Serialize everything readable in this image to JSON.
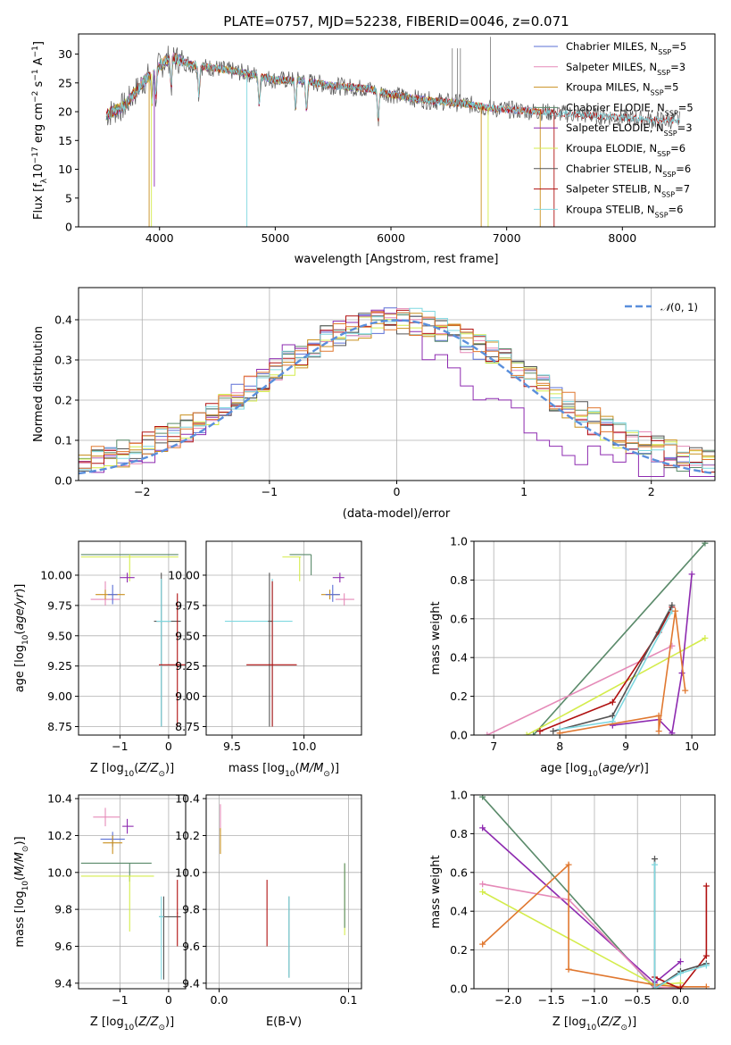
{
  "figure_title": "PLATE=0757, MJD=52238, FIBERID=0046, z=0.071",
  "colors": {
    "Chabrier MILES": "#5b6fd6",
    "Salpeter MILES": "#e58ab8",
    "Kroupa MILES": "#c9901f",
    "Chabrier ELODIE": "#5a8a6a",
    "Salpeter ELODIE": "#8e2bb0",
    "Kroupa ELODIE": "#d4ec4c",
    "Chabrier STELIB": "#555555",
    "Salpeter STELIB": "#b01010",
    "Kroupa STELIB": "#7fd8e0",
    "extra": "#e07830"
  },
  "chart_data": [
    {
      "type": "line",
      "id": "spectrum",
      "title": "PLATE=0757, MJD=52238, FIBERID=0046, z=0.071",
      "xlabel": "wavelength [Angstrom, rest frame]",
      "ylabel": "Flux [f_λ 10^-17 erg cm^-2 s^-1 A^-1]",
      "xlim": [
        3300,
        8800
      ],
      "ylim": [
        0,
        33.5
      ],
      "xticks": [
        4000,
        5000,
        6000,
        7000,
        8000
      ],
      "yticks": [
        0,
        5,
        10,
        15,
        20,
        25,
        30
      ],
      "grid": false,
      "legend_position": "top-right",
      "legend": [
        "Chabrier MILES, N_SSP=5",
        "Salpeter MILES, N_SSP=3",
        "Kroupa MILES, N_SSP=5",
        "Chabrier ELODIE, N_SSP=5",
        "Salpeter ELODIE, N_SSP=3",
        "Kroupa ELODIE, N_SSP=6",
        "Chabrier STELIB, N_SSP=6",
        "Salpeter STELIB, N_SSP=7",
        "Kroupa STELIB, N_SSP=6"
      ],
      "continuum": [
        [
          3540,
          19.5
        ],
        [
          3700,
          21
        ],
        [
          3850,
          25
        ],
        [
          4000,
          28
        ],
        [
          4100,
          29.5
        ],
        [
          4300,
          28
        ],
        [
          4500,
          27.5
        ],
        [
          4800,
          26.5
        ],
        [
          5000,
          25.5
        ],
        [
          5200,
          25.5
        ],
        [
          5500,
          24.5
        ],
        [
          5800,
          24
        ],
        [
          6000,
          23
        ],
        [
          6300,
          22
        ],
        [
          6600,
          21.5
        ],
        [
          6900,
          20.5
        ],
        [
          7300,
          20
        ],
        [
          7600,
          19.5
        ],
        [
          8000,
          19
        ],
        [
          8300,
          18.5
        ],
        [
          8500,
          18.5
        ]
      ]
    },
    {
      "type": "line",
      "id": "residuals",
      "xlabel": "(data-model)/error",
      "ylabel": "Normed distribution",
      "xlim": [
        -2.5,
        2.5
      ],
      "ylim": [
        0,
        0.48
      ],
      "xticks": [
        -2,
        -1,
        0,
        1,
        2
      ],
      "yticks": [
        0.0,
        0.1,
        0.2,
        0.3,
        0.4
      ],
      "grid": true,
      "legend_position": "top-right",
      "legend": [
        "N(0,1)"
      ],
      "gaussian": {
        "mean": 0,
        "sigma": 1
      }
    },
    {
      "type": "scatter",
      "id": "age-vs-Z",
      "xlabel": "Z [log10(Z/Z_sun)]",
      "ylabel": "age [log10(age/yr)]",
      "xlim": [
        -1.85,
        0.35
      ],
      "ylim": [
        8.68,
        10.28
      ],
      "xticks": [
        -1,
        0
      ],
      "yticks": [
        8.75,
        9.0,
        9.25,
        9.5,
        9.75,
        10.0
      ],
      "grid": true,
      "points": [
        {
          "c": "Chabrier ELODIE",
          "x": -0.8,
          "y": 10.17,
          "xe": [
            -1.8,
            0.2
          ],
          "ye": [
            10.17,
            10.17
          ]
        },
        {
          "c": "Kroupa ELODIE",
          "x": -0.8,
          "y": 10.15,
          "xe": [
            -1.8,
            0.2
          ],
          "ye": [
            9.95,
            10.17
          ]
        },
        {
          "c": "Salpeter MILES",
          "x": -1.3,
          "y": 9.8,
          "xe": [
            -1.6,
            -1.0
          ],
          "ye": [
            9.75,
            9.95
          ]
        },
        {
          "c": "Kroupa MILES",
          "x": -1.3,
          "y": 9.84,
          "xe": [
            -1.5,
            -0.9
          ],
          "ye": [
            9.8,
            9.88
          ]
        },
        {
          "c": "Salpeter ELODIE",
          "x": -0.85,
          "y": 9.98,
          "xe": [
            -1.0,
            -0.7
          ],
          "ye": [
            9.94,
            10.02
          ]
        },
        {
          "c": "Chabrier MILES",
          "x": -1.15,
          "y": 9.84,
          "xe": [
            -1.25,
            -1.05
          ],
          "ye": [
            9.76,
            9.92
          ]
        },
        {
          "c": "Chabrier STELIB",
          "x": -0.15,
          "y": 9.62,
          "xe": [
            -0.3,
            0.25
          ],
          "ye": [
            8.75,
            10.02
          ]
        },
        {
          "c": "Kroupa STELIB",
          "x": -0.15,
          "y": 9.62,
          "xe": [
            -0.25,
            0.05
          ],
          "ye": [
            8.75,
            9.97
          ]
        },
        {
          "c": "Salpeter STELIB",
          "x": 0.18,
          "y": 9.26,
          "xe": [
            -0.2,
            0.35
          ],
          "ye": [
            8.75,
            9.85
          ]
        }
      ]
    },
    {
      "type": "scatter",
      "id": "age-vs-mass",
      "xlabel": "mass [log10(M/M_sun)]",
      "ylabel": "",
      "xlim": [
        9.32,
        10.4
      ],
      "ylim": [
        8.68,
        10.28
      ],
      "xticks": [
        9.5,
        10.0
      ],
      "yticks": [
        8.75,
        9.0,
        9.25,
        9.5,
        9.75,
        10.0
      ],
      "grid": true,
      "points": [
        {
          "c": "Chabrier ELODIE",
          "x": 10.05,
          "y": 10.17,
          "xe": [
            9.9,
            10.05
          ],
          "ye": [
            10.0,
            10.17
          ]
        },
        {
          "c": "Kroupa ELODIE",
          "x": 9.97,
          "y": 10.15,
          "xe": [
            9.85,
            9.98
          ],
          "ye": [
            9.95,
            10.15
          ]
        },
        {
          "c": "Salpeter ELODIE",
          "x": 10.25,
          "y": 9.98,
          "xe": [
            10.2,
            10.28
          ],
          "ye": [
            9.94,
            10.02
          ]
        },
        {
          "c": "Salpeter MILES",
          "x": 10.28,
          "y": 9.8,
          "xe": [
            10.22,
            10.35
          ],
          "ye": [
            9.75,
            9.85
          ]
        },
        {
          "c": "Kroupa MILES",
          "x": 10.18,
          "y": 9.84,
          "xe": [
            10.12,
            10.25
          ],
          "ye": [
            9.8,
            9.88
          ]
        },
        {
          "c": "Chabrier MILES",
          "x": 10.2,
          "y": 9.84,
          "xe": [
            10.15,
            10.25
          ],
          "ye": [
            9.78,
            9.92
          ]
        },
        {
          "c": "Kroupa STELIB",
          "x": 9.78,
          "y": 9.62,
          "xe": [
            9.45,
            9.92
          ],
          "ye": [
            8.75,
            9.97
          ]
        },
        {
          "c": "Chabrier STELIB",
          "x": 9.76,
          "y": 9.62,
          "xe": [
            9.75,
            9.78
          ],
          "ye": [
            8.75,
            10.02
          ]
        },
        {
          "c": "Salpeter STELIB",
          "x": 9.78,
          "y": 9.26,
          "xe": [
            9.6,
            9.95
          ],
          "ye": [
            8.75,
            9.95
          ]
        }
      ]
    },
    {
      "type": "line",
      "id": "mass-weight-vs-age",
      "xlabel": "age [log10(age/yr)]",
      "ylabel": "mass weight",
      "xlim": [
        6.7,
        10.35
      ],
      "ylim": [
        0,
        1.0
      ],
      "xticks": [
        7,
        8,
        9,
        10
      ],
      "yticks": [
        0.0,
        0.2,
        0.4,
        0.6,
        0.8,
        1.0
      ],
      "grid": true,
      "series": [
        {
          "c": "Chabrier ELODIE",
          "x": [
            7.6,
            10.2
          ],
          "y": [
            0.0,
            0.99
          ]
        },
        {
          "c": "Salpeter MILES",
          "x": [
            6.9,
            9.7
          ],
          "y": [
            0.0,
            0.46
          ]
        },
        {
          "c": "Kroupa ELODIE",
          "x": [
            7.5,
            10.2
          ],
          "y": [
            0.0,
            0.5
          ]
        },
        {
          "c": "Salpeter ELODIE",
          "x": [
            8.8,
            9.5,
            9.7,
            9.85,
            10.0
          ],
          "y": [
            0.05,
            0.08,
            0.01,
            0.32,
            0.83
          ]
        },
        {
          "c": "Salpeter STELIB",
          "x": [
            7.7,
            8.8,
            9.5,
            9.7
          ],
          "y": [
            0.02,
            0.17,
            0.53,
            0.66
          ]
        },
        {
          "c": "Chabrier STELIB",
          "x": [
            7.9,
            8.8,
            9.7
          ],
          "y": [
            0.02,
            0.1,
            0.67
          ]
        },
        {
          "c": "Kroupa STELIB",
          "x": [
            8.0,
            8.8,
            9.7
          ],
          "y": [
            0.03,
            0.07,
            0.64
          ]
        },
        {
          "c": "extra",
          "x": [
            8.0,
            9.5,
            9.5,
            9.75,
            9.9
          ],
          "y": [
            0.01,
            0.1,
            0.02,
            0.64,
            0.23
          ]
        }
      ]
    },
    {
      "type": "scatter",
      "id": "mass-vs-Z",
      "xlabel": "Z [log10(Z/Z_sun)]",
      "ylabel": "mass [log10(M/M_sun)]",
      "xlim": [
        -1.85,
        0.35
      ],
      "ylim": [
        9.37,
        10.42
      ],
      "xticks": [
        -1,
        0
      ],
      "yticks": [
        9.4,
        9.6,
        9.8,
        10.0,
        10.2,
        10.4
      ],
      "grid": true,
      "points": [
        {
          "c": "Salpeter MILES",
          "x": -1.3,
          "y": 10.3,
          "xe": [
            -1.55,
            -1.0
          ],
          "ye": [
            10.25,
            10.35
          ]
        },
        {
          "c": "Salpeter ELODIE",
          "x": -0.85,
          "y": 10.25,
          "xe": [
            -0.95,
            -0.72
          ],
          "ye": [
            10.21,
            10.29
          ]
        },
        {
          "c": "Chabrier MILES",
          "x": -1.15,
          "y": 10.18,
          "xe": [
            -1.4,
            -0.9
          ],
          "ye": [
            10.14,
            10.22
          ]
        },
        {
          "c": "Kroupa MILES",
          "x": -1.15,
          "y": 10.16,
          "xe": [
            -1.35,
            -0.95
          ],
          "ye": [
            10.1,
            10.2
          ]
        },
        {
          "c": "Chabrier ELODIE",
          "x": -0.8,
          "y": 10.05,
          "xe": [
            -1.8,
            -0.35
          ],
          "ye": [
            9.95,
            10.05
          ]
        },
        {
          "c": "Kroupa ELODIE",
          "x": -0.8,
          "y": 9.98,
          "xe": [
            -1.8,
            -0.3
          ],
          "ye": [
            9.68,
            9.98
          ]
        },
        {
          "c": "Chabrier STELIB",
          "x": -0.1,
          "y": 9.76,
          "xe": [
            -0.2,
            0.25
          ],
          "ye": [
            9.42,
            9.87
          ]
        },
        {
          "c": "Kroupa STELIB",
          "x": -0.15,
          "y": 9.76,
          "xe": [
            -0.2,
            -0.1
          ],
          "ye": [
            9.42,
            9.87
          ]
        },
        {
          "c": "Salpeter STELIB",
          "x": 0.18,
          "y": 9.78,
          "xe": [
            0.17,
            0.19
          ],
          "ye": [
            9.6,
            9.96
          ]
        }
      ]
    },
    {
      "type": "scatter",
      "id": "mass-vs-ebv",
      "xlabel": "E(B-V)",
      "ylabel": "",
      "xlim": [
        -0.01,
        0.11
      ],
      "ylim": [
        9.37,
        10.42
      ],
      "xticks": [
        0.0,
        0.1
      ],
      "yticks": [
        9.4,
        9.6,
        9.8,
        10.0,
        10.2,
        10.4
      ],
      "grid": true,
      "points": [
        {
          "c": "Salpeter MILES",
          "x": 0.001,
          "y": 10.3,
          "ye": [
            10.22,
            10.37
          ]
        },
        {
          "c": "Kroupa MILES",
          "x": 0.001,
          "y": 10.18,
          "ye": [
            10.1,
            10.24
          ]
        },
        {
          "c": "Salpeter STELIB",
          "x": 0.037,
          "y": 9.78,
          "ye": [
            9.6,
            9.96
          ]
        },
        {
          "c": "Chabrier STELIB",
          "x": 0.054,
          "y": 9.66,
          "ye": [
            9.43,
            9.87
          ]
        },
        {
          "c": "Kroupa STELIB",
          "x": 0.054,
          "y": 9.66,
          "ye": [
            9.43,
            9.87
          ]
        },
        {
          "c": "Kroupa ELODIE",
          "x": 0.097,
          "y": 9.85,
          "ye": [
            9.66,
            10.05
          ]
        },
        {
          "c": "Chabrier ELODIE",
          "x": 0.097,
          "y": 9.85,
          "ye": [
            9.7,
            10.05
          ]
        }
      ]
    },
    {
      "type": "line",
      "id": "mass-weight-vs-Z",
      "xlabel": "Z [log10(Z/Z_sun)]",
      "ylabel": "mass weight",
      "xlim": [
        -2.4,
        0.4
      ],
      "ylim": [
        0,
        1.0
      ],
      "xticks": [
        -2.0,
        -1.5,
        -1.0,
        -0.5,
        0.0
      ],
      "yticks": [
        0.0,
        0.2,
        0.4,
        0.6,
        0.8,
        1.0
      ],
      "grid": true,
      "series": [
        {
          "c": "Chabrier ELODIE",
          "x": [
            -2.3,
            -0.3,
            0.0
          ],
          "y": [
            0.99,
            0.0,
            0.01
          ]
        },
        {
          "c": "Salpeter ELODIE",
          "x": [
            -2.3,
            -0.3,
            0.0
          ],
          "y": [
            0.83,
            0.03,
            0.14
          ]
        },
        {
          "c": "Salpeter MILES",
          "x": [
            -2.3,
            -1.3,
            -0.3,
            0.0
          ],
          "y": [
            0.54,
            0.46,
            0.01,
            0.0
          ]
        },
        {
          "c": "Kroupa ELODIE",
          "x": [
            -2.3,
            -0.3,
            0.0
          ],
          "y": [
            0.5,
            0.02,
            0.03
          ]
        },
        {
          "c": "extra",
          "x": [
            -2.3,
            -1.3,
            -1.3,
            -0.3,
            0.0,
            0.3
          ],
          "y": [
            0.23,
            0.64,
            0.1,
            0.02,
            0.01,
            0.01
          ]
        },
        {
          "c": "Salpeter STELIB",
          "x": [
            -0.3,
            0.0,
            0.3,
            0.3
          ],
          "y": [
            0.06,
            0.0,
            0.17,
            0.53
          ]
        },
        {
          "c": "Chabrier STELIB",
          "x": [
            -0.3,
            -0.3,
            0.0,
            0.3
          ],
          "y": [
            0.67,
            0.0,
            0.09,
            0.13
          ]
        },
        {
          "c": "Kroupa STELIB",
          "x": [
            -0.3,
            -0.3,
            0.0,
            0.3
          ],
          "y": [
            0.64,
            0.0,
            0.08,
            0.12
          ]
        }
      ]
    }
  ]
}
